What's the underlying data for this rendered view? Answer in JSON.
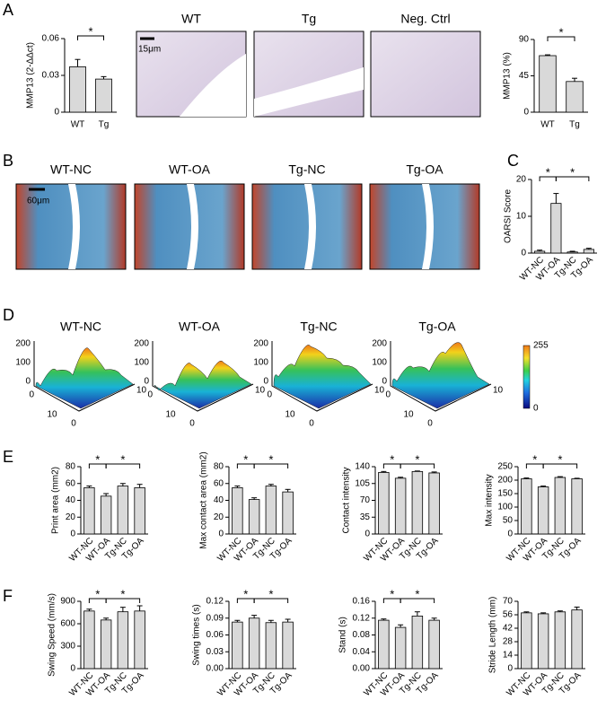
{
  "panels": [
    "A",
    "B",
    "C",
    "D",
    "E",
    "F"
  ],
  "images_a": {
    "titles": [
      "WT",
      "Tg",
      "Neg. Ctrl"
    ],
    "scale": "15μm"
  },
  "images_b": {
    "titles": [
      "WT-NC",
      "WT-OA",
      "Tg-NC",
      "Tg-OA"
    ],
    "scale": "60μm"
  },
  "surfaces": {
    "titles": [
      "WT-NC",
      "WT-OA",
      "Tg-NC",
      "Tg-OA"
    ],
    "zticks": [
      "200",
      "100",
      "0"
    ],
    "xticks": [
      "0",
      "10"
    ],
    "yticks": [
      "0",
      "10"
    ],
    "colorbar": {
      "max": "255",
      "min": "0"
    }
  },
  "chart_data": [
    {
      "type": "bar",
      "ylabel": "MMP13 (2-ΔΔct)",
      "categories": [
        "WT",
        "Tg"
      ],
      "values": [
        0.037,
        0.027
      ],
      "errors": [
        0.006,
        0.002
      ],
      "ylim": [
        0,
        0.06
      ],
      "yticks": [
        0,
        0.03,
        0.06
      ],
      "color": "#d9d9d9",
      "significance": [
        {
          "from": 0,
          "to": 1,
          "label": "*"
        }
      ]
    },
    {
      "type": "bar",
      "ylabel": "MMP13 (%)",
      "categories": [
        "WT",
        "Tg"
      ],
      "values": [
        70,
        38
      ],
      "errors": [
        1,
        4
      ],
      "ylim": [
        0,
        90
      ],
      "yticks": [
        0,
        45,
        90
      ],
      "color": "#d9d9d9",
      "significance": [
        {
          "from": 0,
          "to": 1,
          "label": "*"
        }
      ]
    },
    {
      "type": "bar",
      "ylabel": "OARSI Score",
      "categories": [
        "WT-NC",
        "WT-OA",
        "Tg-NC",
        "Tg-OA"
      ],
      "values": [
        0.5,
        13.5,
        0.3,
        1.0
      ],
      "errors": [
        0.3,
        2.7,
        0.2,
        0.3
      ],
      "ylim": [
        0,
        20
      ],
      "yticks": [
        0,
        10,
        20
      ],
      "color": "#d9d9d9",
      "significance": [
        {
          "from": 0,
          "to": 1,
          "label": "*"
        },
        {
          "from": 1,
          "to": 3,
          "label": "*"
        }
      ]
    },
    {
      "type": "bar",
      "ylabel": "Print area (mm2)",
      "categories": [
        "WT-NC",
        "WT-OA",
        "Tg-NC",
        "Tg-OA"
      ],
      "values": [
        55,
        45,
        57,
        55
      ],
      "errors": [
        2,
        3,
        3,
        4
      ],
      "ylim": [
        0,
        80
      ],
      "yticks": [
        0,
        20,
        40,
        60,
        80
      ],
      "color": "#d9d9d9",
      "significance": [
        {
          "from": 0,
          "to": 1,
          "label": "*"
        },
        {
          "from": 1,
          "to": 3,
          "label": "*"
        }
      ]
    },
    {
      "type": "bar",
      "ylabel": "Max contact area (mm2)",
      "categories": [
        "WT-NC",
        "WT-OA",
        "Tg-NC",
        "Tg-OA"
      ],
      "values": [
        55,
        41,
        57,
        50
      ],
      "errors": [
        2,
        2,
        2,
        3
      ],
      "ylim": [
        0,
        80
      ],
      "yticks": [
        0,
        20,
        40,
        60,
        80
      ],
      "color": "#d9d9d9",
      "significance": [
        {
          "from": 0,
          "to": 1,
          "label": "*"
        },
        {
          "from": 1,
          "to": 3,
          "label": "*"
        }
      ]
    },
    {
      "type": "bar",
      "ylabel": "Contact intensity",
      "categories": [
        "WT-NC",
        "WT-OA",
        "Tg-NC",
        "Tg-OA"
      ],
      "values": [
        128,
        116,
        130,
        127
      ],
      "errors": [
        2,
        2,
        1,
        2
      ],
      "ylim": [
        0,
        140
      ],
      "yticks": [
        0,
        35,
        70,
        105,
        140
      ],
      "color": "#d9d9d9",
      "significance": [
        {
          "from": 0,
          "to": 1,
          "label": "*"
        },
        {
          "from": 1,
          "to": 3,
          "label": "*"
        }
      ]
    },
    {
      "type": "bar",
      "ylabel": "Max intensity",
      "categories": [
        "WT-NC",
        "WT-OA",
        "Tg-NC",
        "Tg-OA"
      ],
      "values": [
        205,
        175,
        210,
        205
      ],
      "errors": [
        3,
        3,
        3,
        2
      ],
      "ylim": [
        0,
        250
      ],
      "yticks": [
        0,
        50,
        100,
        150,
        200,
        250
      ],
      "color": "#d9d9d9",
      "significance": [
        {
          "from": 0,
          "to": 1,
          "label": "*"
        },
        {
          "from": 1,
          "to": 3,
          "label": "*"
        }
      ]
    },
    {
      "type": "bar",
      "ylabel": "Swing Speed (mm/s)",
      "categories": [
        "WT-NC",
        "WT-OA",
        "Tg-NC",
        "Tg-OA"
      ],
      "values": [
        770,
        650,
        760,
        770
      ],
      "errors": [
        25,
        25,
        60,
        70
      ],
      "ylim": [
        0,
        900
      ],
      "yticks": [
        0,
        300,
        600,
        900
      ],
      "color": "#d9d9d9",
      "significance": [
        {
          "from": 0,
          "to": 1,
          "label": "*"
        },
        {
          "from": 1,
          "to": 3,
          "label": "*"
        }
      ]
    },
    {
      "type": "bar",
      "ylabel": "Swing times (s)",
      "categories": [
        "WT-NC",
        "WT-OA",
        "Tg-NC",
        "Tg-OA"
      ],
      "values": [
        0.083,
        0.09,
        0.082,
        0.083
      ],
      "errors": [
        0.003,
        0.005,
        0.004,
        0.005
      ],
      "ylim": [
        0,
        0.12
      ],
      "yticks": [
        {
          "value": 0,
          "label": "0.00"
        },
        0.03,
        0.06,
        0.09,
        0.12
      ],
      "color": "#d9d9d9",
      "significance": [
        {
          "from": 0,
          "to": 1,
          "label": "*"
        },
        {
          "from": 1,
          "to": 3,
          "label": "*"
        }
      ]
    },
    {
      "type": "bar",
      "ylabel": "Stand (s)",
      "categories": [
        "WT-NC",
        "WT-OA",
        "Tg-NC",
        "Tg-OA"
      ],
      "values": [
        0.115,
        0.098,
        0.125,
        0.115
      ],
      "errors": [
        0.003,
        0.006,
        0.01,
        0.005
      ],
      "ylim": [
        0,
        0.16
      ],
      "yticks": [
        {
          "value": 0,
          "label": "0.00"
        },
        0.04,
        0.08,
        0.12,
        0.16
      ],
      "color": "#d9d9d9",
      "significance": [
        {
          "from": 0,
          "to": 1,
          "label": "*"
        },
        {
          "from": 1,
          "to": 3,
          "label": "*"
        }
      ]
    },
    {
      "type": "bar",
      "ylabel": "Stride Length (mm)",
      "categories": [
        "WT-NC",
        "WT-OA",
        "Tg-NC",
        "Tg-OA"
      ],
      "values": [
        58,
        57,
        59,
        61
      ],
      "errors": [
        1,
        1,
        1,
        3
      ],
      "ylim": [
        0,
        70
      ],
      "yticks": [
        0,
        14,
        28,
        42,
        56,
        70
      ],
      "color": "#d9d9d9",
      "significance": []
    }
  ]
}
